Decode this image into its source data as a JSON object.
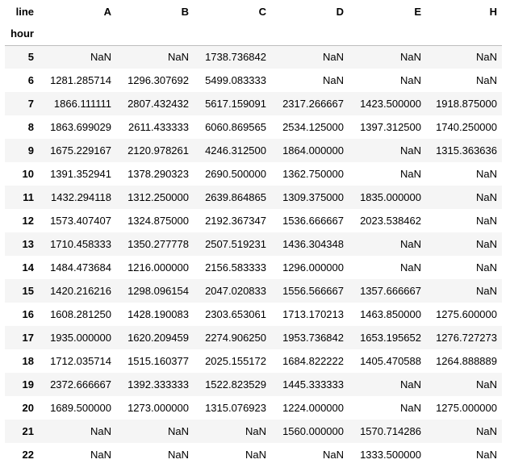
{
  "table": {
    "columns_name": "line",
    "index_name": "hour",
    "columns": [
      "A",
      "B",
      "C",
      "D",
      "E",
      "H"
    ],
    "rows": [
      {
        "hour": "5",
        "values": [
          "NaN",
          "NaN",
          "1738.736842",
          "NaN",
          "NaN",
          "NaN"
        ]
      },
      {
        "hour": "6",
        "values": [
          "1281.285714",
          "1296.307692",
          "5499.083333",
          "NaN",
          "NaN",
          "NaN"
        ]
      },
      {
        "hour": "7",
        "values": [
          "1866.111111",
          "2807.432432",
          "5617.159091",
          "2317.266667",
          "1423.500000",
          "1918.875000"
        ]
      },
      {
        "hour": "8",
        "values": [
          "1863.699029",
          "2611.433333",
          "6060.869565",
          "2534.125000",
          "1397.312500",
          "1740.250000"
        ]
      },
      {
        "hour": "9",
        "values": [
          "1675.229167",
          "2120.978261",
          "4246.312500",
          "1864.000000",
          "NaN",
          "1315.363636"
        ]
      },
      {
        "hour": "10",
        "values": [
          "1391.352941",
          "1378.290323",
          "2690.500000",
          "1362.750000",
          "NaN",
          "NaN"
        ]
      },
      {
        "hour": "11",
        "values": [
          "1432.294118",
          "1312.250000",
          "2639.864865",
          "1309.375000",
          "1835.000000",
          "NaN"
        ]
      },
      {
        "hour": "12",
        "values": [
          "1573.407407",
          "1324.875000",
          "2192.367347",
          "1536.666667",
          "2023.538462",
          "NaN"
        ]
      },
      {
        "hour": "13",
        "values": [
          "1710.458333",
          "1350.277778",
          "2507.519231",
          "1436.304348",
          "NaN",
          "NaN"
        ]
      },
      {
        "hour": "14",
        "values": [
          "1484.473684",
          "1216.000000",
          "2156.583333",
          "1296.000000",
          "NaN",
          "NaN"
        ]
      },
      {
        "hour": "15",
        "values": [
          "1420.216216",
          "1298.096154",
          "2047.020833",
          "1556.566667",
          "1357.666667",
          "NaN"
        ]
      },
      {
        "hour": "16",
        "values": [
          "1608.281250",
          "1428.190083",
          "2303.653061",
          "1713.170213",
          "1463.850000",
          "1275.600000"
        ]
      },
      {
        "hour": "17",
        "values": [
          "1935.000000",
          "1620.209459",
          "2274.906250",
          "1953.736842",
          "1653.195652",
          "1276.727273"
        ]
      },
      {
        "hour": "18",
        "values": [
          "1712.035714",
          "1515.160377",
          "2025.155172",
          "1684.822222",
          "1405.470588",
          "1264.888889"
        ]
      },
      {
        "hour": "19",
        "values": [
          "2372.666667",
          "1392.333333",
          "1522.823529",
          "1445.333333",
          "NaN",
          "NaN"
        ]
      },
      {
        "hour": "20",
        "values": [
          "1689.500000",
          "1273.000000",
          "1315.076923",
          "1224.000000",
          "NaN",
          "1275.000000"
        ]
      },
      {
        "hour": "21",
        "values": [
          "NaN",
          "NaN",
          "NaN",
          "1560.000000",
          "1570.714286",
          "NaN"
        ]
      },
      {
        "hour": "22",
        "values": [
          "NaN",
          "NaN",
          "NaN",
          "NaN",
          "1333.500000",
          "NaN"
        ]
      }
    ]
  }
}
